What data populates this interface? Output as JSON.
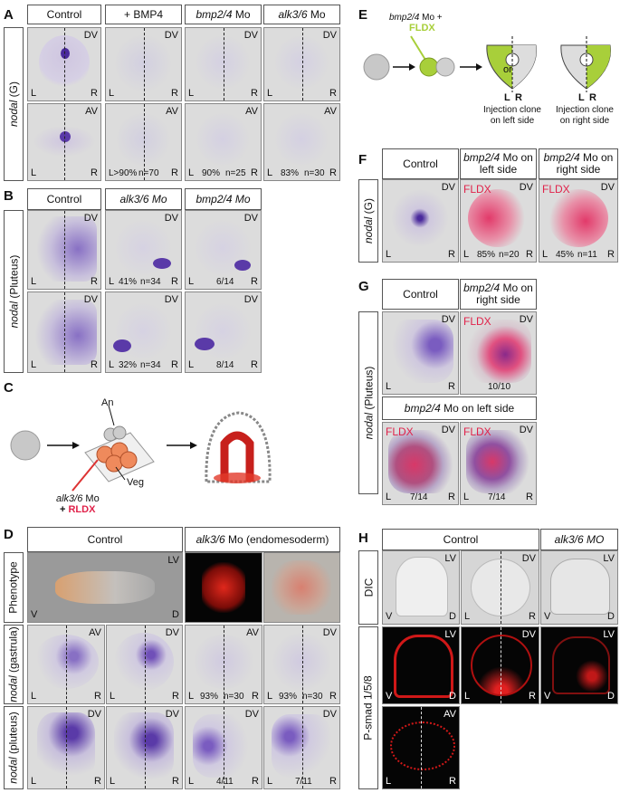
{
  "panels": [
    "A",
    "B",
    "C",
    "D",
    "E",
    "F",
    "G",
    "H"
  ],
  "sides": {
    "L": "L",
    "R": "R",
    "V": "V",
    "D": "D"
  },
  "views": {
    "DV": "DV",
    "AV": "AV",
    "LV": "LV"
  },
  "A": {
    "headers": [
      "Control",
      "+ BMP4",
      "bmp2/4",
      "Mo",
      "alk3/6",
      "Mo"
    ],
    "row_label_italic": "nodal",
    "row_label_rest": " (G)",
    "stats": [
      "L>90%",
      "n=70",
      "90%",
      "n=25",
      "83%",
      "n=30"
    ]
  },
  "B": {
    "headers": [
      "Control",
      "alk3/6 Mo",
      "bmp2/4 Mo"
    ],
    "row_label_italic": "nodal",
    "row_label_rest": " (Pluteus)",
    "stats": [
      "41%",
      "n=34",
      "6/14",
      "32%",
      "n=34",
      "8/14"
    ]
  },
  "C": {
    "an": "An",
    "veg": "Veg",
    "mo_italic": "alk3/6",
    "mo_rest": " Mo",
    "plus": "+ ",
    "rldx": "RLDX"
  },
  "D": {
    "headers": [
      "Control",
      "alk3/6",
      "Mo (endomesoderm)"
    ],
    "rows": [
      "Phenotype",
      "nodal",
      "(gastrula)",
      "nodal",
      "(pluteus)"
    ],
    "stats": [
      "93%",
      "n=30",
      "93%",
      "n=30",
      "4/11",
      "7/11"
    ]
  },
  "E": {
    "mo_italic": "bmp2/4",
    "mo_rest": " Mo +",
    "fldx": "FLDX",
    "or": "or",
    "clone_left": "Injection clone on left side",
    "clone_right": "Injection clone on right side"
  },
  "F": {
    "headers": [
      "Control",
      "bmp2/4",
      "Mo on left side",
      "bmp2/4",
      "Mo on right side"
    ],
    "row_label_italic": "nodal",
    "row_label_rest": " (G)",
    "fldx": "FLDX",
    "stats": [
      "85%",
      "n=20",
      "45%",
      "n=11"
    ]
  },
  "G": {
    "headers": [
      "Control",
      "bmp2/4",
      "Mo on right side",
      "bmp2/4",
      "Mo on left side"
    ],
    "row_label_italic": "nodal",
    "row_label_rest": " (Pluteus)",
    "fldx": "FLDX",
    "stats": [
      "10/10",
      "7/14",
      "7/14"
    ]
  },
  "H": {
    "headers": [
      "Control",
      "alk3/6 MO"
    ],
    "rows": [
      "DIC",
      "P-smad 1/5/8"
    ]
  },
  "colors": {
    "purple": "#5a3aa8",
    "red": "#e0224a",
    "green": "#a8cf3a",
    "hdr_border": "#555"
  }
}
